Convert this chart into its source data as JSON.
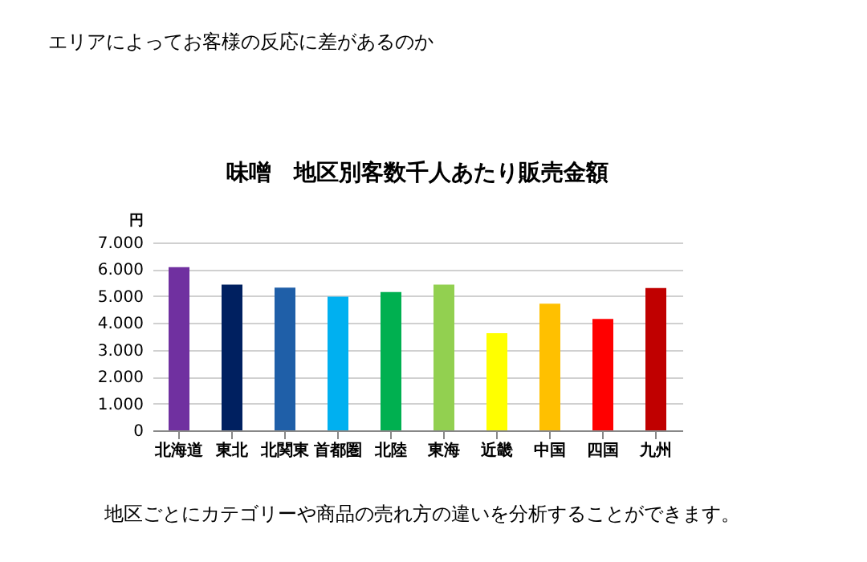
{
  "chart_data": {
    "type": "bar",
    "title": "味噌　地区別客数千人あたり販売金額",
    "ylabel": "円",
    "annotations": [
      "エリアによってお客様の反応に差があるのか",
      "地区ごとにカテゴリーや商品の売れ方の違いを分析することができます。"
    ],
    "categories": [
      "北海道",
      "東北",
      "北関東",
      "首都圏",
      "北陸",
      "東海",
      "近畿",
      "中国",
      "四国",
      "九州"
    ],
    "values": [
      6080,
      5430,
      5320,
      4980,
      5150,
      5430,
      3620,
      4720,
      4150,
      5300
    ],
    "colors": [
      "#7030a0",
      "#002060",
      "#1f5fa8",
      "#00b0f0",
      "#00b050",
      "#92d050",
      "#ffff00",
      "#ffc000",
      "#ff0000",
      "#c00000"
    ],
    "ylim": [
      0,
      7000
    ],
    "yticks": [
      {
        "value": 0,
        "label": "0"
      },
      {
        "value": 1000,
        "label": "1.000"
      },
      {
        "value": 2000,
        "label": "2.000"
      },
      {
        "value": 3000,
        "label": "3.000"
      },
      {
        "value": 4000,
        "label": "4.000"
      },
      {
        "value": 5000,
        "label": "5.000"
      },
      {
        "value": 6000,
        "label": "6.000"
      },
      {
        "value": 7000,
        "label": "7.000"
      }
    ],
    "grid": "y",
    "legend": false
  }
}
